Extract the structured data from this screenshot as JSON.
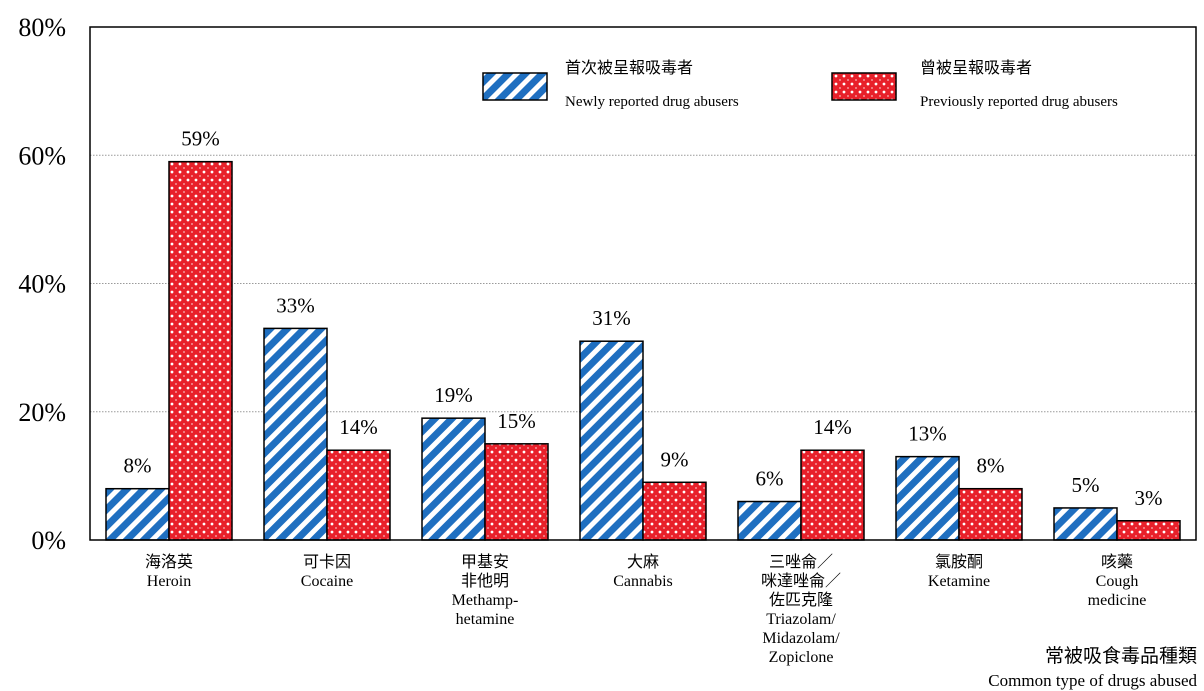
{
  "chart_data": {
    "type": "bar",
    "y_axis": {
      "ylim": [
        0,
        80
      ],
      "ticks": [
        "0%",
        "20%",
        "40%",
        "60%",
        "80%"
      ],
      "tick_values": [
        0,
        20,
        40,
        60,
        80
      ],
      "gridlines": true
    },
    "categories": [
      {
        "zh": [
          "海洛英"
        ],
        "en": [
          "Heroin"
        ]
      },
      {
        "zh": [
          "可卡因"
        ],
        "en": [
          "Cocaine"
        ]
      },
      {
        "zh": [
          "甲基安",
          "非他明"
        ],
        "en": [
          "Methamp-",
          "hetamine"
        ]
      },
      {
        "zh": [
          "大麻"
        ],
        "en": [
          "Cannabis"
        ]
      },
      {
        "zh": [
          "三唑侖／",
          "咪達唑侖／",
          "佐匹克隆"
        ],
        "en": [
          "Triazolam/",
          "Midazolam/",
          "Zopiclone"
        ]
      },
      {
        "zh": [
          "氯胺酮"
        ],
        "en": [
          "Ketamine"
        ]
      },
      {
        "zh": [
          "咳藥"
        ],
        "en": [
          "Cough",
          "medicine"
        ]
      }
    ],
    "series": [
      {
        "name_zh": "首次被呈報吸毒者",
        "name_en": "Newly reported drug abusers",
        "fill": "#1f6fc0",
        "pattern": "diagonal-stripes",
        "values": [
          8,
          33,
          19,
          31,
          6,
          13,
          5
        ],
        "labels": [
          "8%",
          "33%",
          "19%",
          "31%",
          "6%",
          "13%",
          "5%"
        ]
      },
      {
        "name_zh": "曾被呈報吸毒者",
        "name_en": "Previously reported drug abusers",
        "fill": "#e8202a",
        "pattern": "dotted-grid",
        "values": [
          59,
          14,
          15,
          9,
          14,
          8,
          3
        ],
        "labels": [
          "59%",
          "14%",
          "15%",
          "9%",
          "14%",
          "8%",
          "3%"
        ]
      }
    ],
    "legend_position": "top-right",
    "x_axis_title_zh": "常被吸食毒品種類",
    "x_axis_title_en": "Common type of drugs abused"
  }
}
